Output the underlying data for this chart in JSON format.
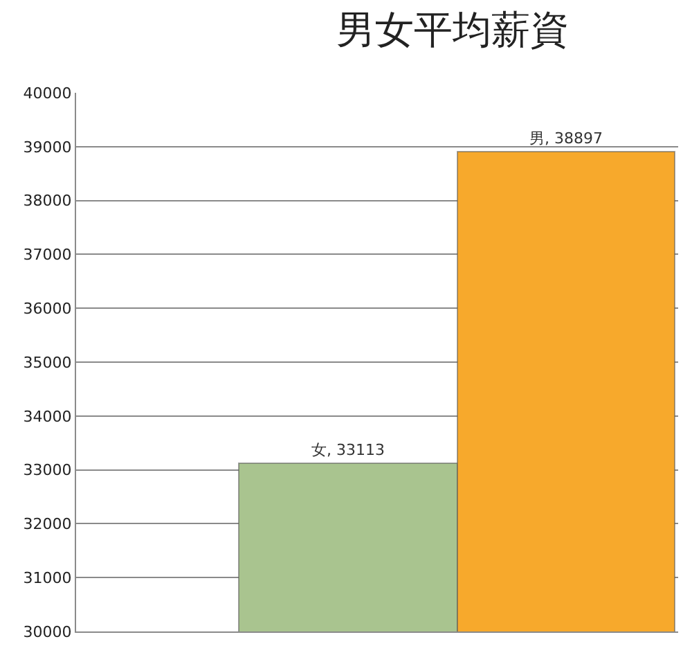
{
  "chart_data": {
    "type": "bar",
    "title": "男女平均薪資",
    "categories": [
      null,
      null
    ],
    "values": [
      33113,
      38897
    ],
    "value_labels": [
      "女, 33113",
      "男, 38897"
    ],
    "colors": [
      "#a9c48f",
      "#f7a92c"
    ],
    "ylim": [
      30000,
      40000
    ],
    "yticks": [
      30000,
      31000,
      32000,
      33000,
      34000,
      35000,
      36000,
      37000,
      38000,
      39000,
      40000
    ],
    "grid": "y",
    "tick_labels": "y"
  }
}
